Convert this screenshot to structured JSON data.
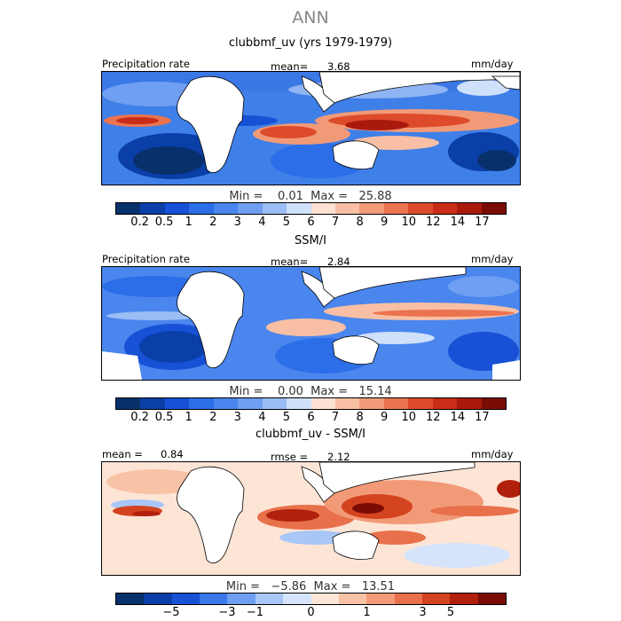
{
  "season": "ANN",
  "panels": [
    {
      "title": "clubbmf_uv (yrs 1979-1979)",
      "left_label": "Precipitation rate",
      "stat_label": "mean=",
      "stat_value": "3.68",
      "units": "mm/day",
      "min_label": "Min =",
      "min_value": "0.01",
      "max_label": "Max =",
      "max_value": "25.88",
      "colorbar_ticks": [
        "0.2",
        "0.5",
        "1",
        "2",
        "3",
        "4",
        "5",
        "6",
        "7",
        "8",
        "9",
        "10",
        "12",
        "14",
        "17"
      ]
    },
    {
      "title": "SSM/I",
      "left_label": "Precipitation rate",
      "stat_label": "mean=",
      "stat_value": "2.84",
      "units": "mm/day",
      "min_label": "Min =",
      "min_value": "0.00",
      "max_label": "Max =",
      "max_value": "15.14",
      "colorbar_ticks": [
        "0.2",
        "0.5",
        "1",
        "2",
        "3",
        "4",
        "5",
        "6",
        "7",
        "8",
        "9",
        "10",
        "12",
        "14",
        "17"
      ]
    },
    {
      "title": "clubbmf_uv - SSM/I",
      "left_label": "mean =",
      "left_value": "0.84",
      "stat_label": "rmse =",
      "stat_value": "2.12",
      "units": "mm/day",
      "min_label": "Min =",
      "min_value": "−5.86",
      "max_label": "Max =",
      "max_value": "13.51",
      "colorbar_ticks": [
        "−5",
        "−3",
        "−1",
        "0",
        "1",
        "3",
        "5"
      ]
    }
  ],
  "colors": {
    "abs_scale": [
      "#08306b",
      "#0a3fa8",
      "#1651d6",
      "#2b6ee8",
      "#4a86ee",
      "#6f9ff2",
      "#9bbdf5",
      "#cfe0fa",
      "#fde1d2",
      "#f8bfa4",
      "#f29a78",
      "#eb7350",
      "#dd4b2b",
      "#c92d17",
      "#a91a0d",
      "#7a0c05"
    ],
    "diff_scale": [
      "#08306b",
      "#0a3fa8",
      "#1651d6",
      "#3a78ea",
      "#6f9ff2",
      "#a8c6f6",
      "#d6e4fb",
      "#fde5d6",
      "#f8c2a6",
      "#f29a78",
      "#e8704a",
      "#d4431f",
      "#b0200d",
      "#7a0c05"
    ],
    "land": "#ffffff"
  }
}
